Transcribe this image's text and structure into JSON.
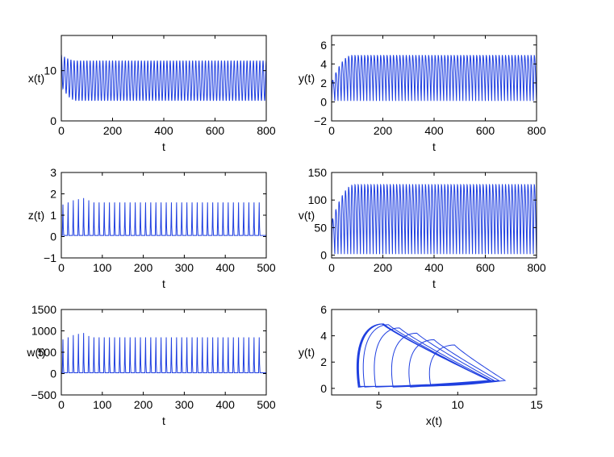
{
  "chart_data": [
    {
      "type": "line",
      "xlabel": "t",
      "ylabel": "x(t)",
      "xlim": [
        0,
        800
      ],
      "ylim": [
        0,
        17
      ],
      "xticks": [
        "0",
        "200",
        "400",
        "600",
        "800"
      ],
      "yticks": [
        "0",
        "10"
      ],
      "xtick_values": [
        0,
        200,
        400,
        600,
        800
      ],
      "ytick_values": [
        0,
        10
      ],
      "series": [
        {
          "color": "#1f3fe0",
          "oscillation": {
            "start": 0,
            "end": 800,
            "period": 12.5,
            "initial_max": 13.2,
            "initial_min": 7.0,
            "steady_max": 12.0,
            "steady_min": 4.0,
            "settle_time": 60,
            "shape": "sine"
          }
        }
      ]
    },
    {
      "type": "line",
      "xlabel": "t",
      "ylabel": "y(t)",
      "xlim": [
        0,
        800
      ],
      "ylim": [
        -2,
        7
      ],
      "xticks": [
        "0",
        "200",
        "400",
        "600",
        "800"
      ],
      "yticks": [
        "−2",
        "0",
        "2",
        "4",
        "6"
      ],
      "xtick_values": [
        0,
        200,
        400,
        600,
        800
      ],
      "ytick_values": [
        -2,
        0,
        2,
        4,
        6
      ],
      "series": [
        {
          "color": "#1f3fe0",
          "oscillation": {
            "start": 0,
            "end": 800,
            "period": 12.5,
            "initial_max": 2.0,
            "initial_min": 0.1,
            "steady_max": 4.9,
            "steady_min": 0.1,
            "settle_time": 80,
            "shape": "skew-up"
          }
        }
      ]
    },
    {
      "type": "line",
      "xlabel": "t",
      "ylabel": "z(t)",
      "xlim": [
        0,
        500
      ],
      "ylim": [
        -1,
        3
      ],
      "xticks": [
        "0",
        "100",
        "200",
        "300",
        "400",
        "500"
      ],
      "yticks": [
        "−1",
        "0",
        "1",
        "2",
        "3"
      ],
      "xtick_values": [
        0,
        100,
        200,
        300,
        400,
        500
      ],
      "ytick_values": [
        -1,
        0,
        1,
        2,
        3
      ],
      "series": [
        {
          "color": "#1f3fe0",
          "spikes": {
            "start": 4,
            "end": 495,
            "period": 12.6,
            "baseline": 0.05,
            "width": 1.6,
            "heights": [
              1.5,
              1.6,
              1.7,
              1.75,
              1.8,
              1.7
            ],
            "steady_height": 1.6
          }
        }
      ]
    },
    {
      "type": "line",
      "xlabel": "t",
      "ylabel": "v(t)",
      "xlim": [
        0,
        800
      ],
      "ylim": [
        -5,
        150
      ],
      "xticks": [
        "0",
        "200",
        "400",
        "600",
        "800"
      ],
      "yticks": [
        "0",
        "50",
        "100",
        "150"
      ],
      "xtick_values": [
        0,
        200,
        400,
        600,
        800
      ],
      "ytick_values": [
        0,
        50,
        100,
        150
      ],
      "series": [
        {
          "color": "#1f3fe0",
          "oscillation": {
            "start": 0,
            "end": 800,
            "period": 12.5,
            "initial_max": 60,
            "initial_min": 2,
            "steady_max": 128,
            "steady_min": 2,
            "settle_time": 90,
            "shape": "skew-up"
          }
        }
      ]
    },
    {
      "type": "line",
      "xlabel": "t",
      "ylabel": "w(t)",
      "xlim": [
        0,
        500
      ],
      "ylim": [
        -500,
        1500
      ],
      "xticks": [
        "0",
        "100",
        "200",
        "300",
        "400",
        "500"
      ],
      "yticks": [
        "−500",
        "0",
        "500",
        "1000",
        "1500"
      ],
      "xtick_values": [
        0,
        100,
        200,
        300,
        400,
        500
      ],
      "ytick_values": [
        -500,
        0,
        500,
        1000,
        1500
      ],
      "series": [
        {
          "color": "#1f3fe0",
          "spikes": {
            "start": 4,
            "end": 495,
            "period": 12.6,
            "baseline": 20,
            "width": 1.6,
            "heights": [
              800,
              850,
              900,
              930,
              950,
              880
            ],
            "steady_height": 850
          }
        }
      ]
    },
    {
      "type": "line",
      "xlabel": "x(t)",
      "ylabel": "y(t)",
      "xlim": [
        2,
        15
      ],
      "ylim": [
        -0.5,
        6
      ],
      "xticks": [
        "5",
        "10",
        "15"
      ],
      "yticks": [
        "0",
        "2",
        "4",
        "6"
      ],
      "xtick_values": [
        5,
        10,
        15
      ],
      "ytick_values": [
        0,
        2,
        4,
        6
      ],
      "series": [
        {
          "color": "#1f3fe0",
          "phase_loops": [
            {
              "xmin": 8.3,
              "xmax": 13.0,
              "ymax": 3.3,
              "ymin": 0.15
            },
            {
              "xmin": 7.0,
              "xmax": 12.6,
              "ymax": 3.7,
              "ymin": 0.1
            },
            {
              "xmin": 5.9,
              "xmax": 12.3,
              "ymax": 4.2,
              "ymin": 0.1
            },
            {
              "xmin": 4.8,
              "xmax": 12.1,
              "ymax": 4.6,
              "ymin": 0.1
            },
            {
              "xmin": 4.1,
              "xmax": 12.0,
              "ymax": 4.85,
              "ymin": 0.1
            },
            {
              "xmin": 3.8,
              "xmax": 12.0,
              "ymax": 4.9,
              "ymin": 0.1
            },
            {
              "xmin": 3.75,
              "xmax": 12.0,
              "ymax": 4.9,
              "ymin": 0.1
            },
            {
              "xmin": 3.7,
              "xmax": 12.0,
              "ymax": 4.9,
              "ymin": 0.1
            }
          ]
        }
      ]
    }
  ]
}
